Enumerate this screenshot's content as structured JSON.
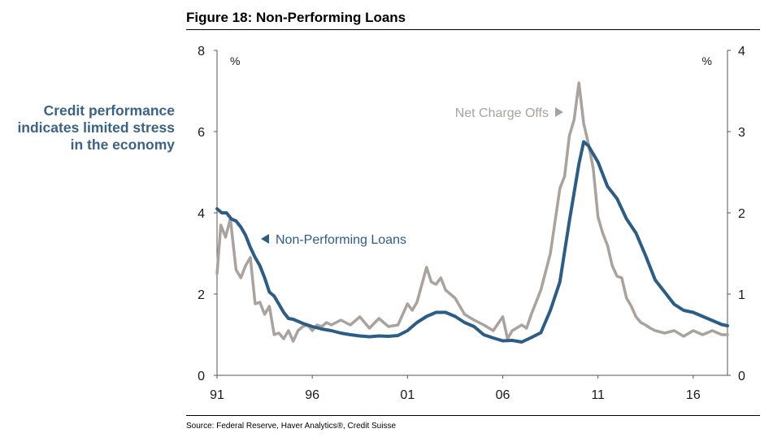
{
  "figure": {
    "title": "Figure 18: Non-Performing Loans",
    "source": "Source: Federal Reserve, Haver Analytics®, Credit Suisse"
  },
  "side_note": {
    "lines": [
      "Credit performance",
      "indicates limited stress",
      "in the economy"
    ]
  },
  "colors": {
    "npl": "#2c5d87",
    "nco": "#aaa29e",
    "side_note": "#3b6287",
    "axis": "#555555"
  },
  "chart_data": {
    "type": "line",
    "title": "Figure 18: Non-Performing Loans",
    "x_range": [
      1991,
      2017.8
    ],
    "x_ticks": [
      1991,
      1996,
      2001,
      2006,
      2011,
      2016
    ],
    "x_tick_labels": [
      "91",
      "96",
      "01",
      "06",
      "11",
      "16"
    ],
    "y_left": {
      "range": [
        0,
        8
      ],
      "ticks": [
        0,
        2,
        4,
        6,
        8
      ],
      "unit": "%"
    },
    "y_right": {
      "range": [
        0,
        4
      ],
      "ticks": [
        0,
        1,
        2,
        3,
        4
      ],
      "unit": "%"
    },
    "grid": false,
    "legend": "inline annotations",
    "annotations": [
      {
        "text": "Non-Performing Loans",
        "series": "Non-Performing Loans",
        "arrow": "left"
      },
      {
        "text": "Net Charge Offs",
        "series": "Net Charge Offs",
        "arrow": "right"
      }
    ],
    "series": [
      {
        "name": "Non-Performing Loans",
        "axis": "left",
        "points": [
          [
            1991.0,
            4.1
          ],
          [
            1991.25,
            4.0
          ],
          [
            1991.5,
            4.0
          ],
          [
            1991.75,
            3.85
          ],
          [
            1992.0,
            3.8
          ],
          [
            1992.25,
            3.65
          ],
          [
            1992.5,
            3.45
          ],
          [
            1992.75,
            3.15
          ],
          [
            1993.0,
            2.9
          ],
          [
            1993.25,
            2.7
          ],
          [
            1993.5,
            2.4
          ],
          [
            1993.75,
            2.05
          ],
          [
            1994.0,
            1.95
          ],
          [
            1994.25,
            1.75
          ],
          [
            1994.5,
            1.55
          ],
          [
            1994.75,
            1.4
          ],
          [
            1995.0,
            1.38
          ],
          [
            1995.25,
            1.33
          ],
          [
            1995.5,
            1.28
          ],
          [
            1995.75,
            1.24
          ],
          [
            1996.0,
            1.2
          ],
          [
            1996.5,
            1.14
          ],
          [
            1997.0,
            1.1
          ],
          [
            1997.5,
            1.04
          ],
          [
            1998.0,
            1.0
          ],
          [
            1998.5,
            0.97
          ],
          [
            1999.0,
            0.95
          ],
          [
            1999.5,
            0.97
          ],
          [
            2000.0,
            0.96
          ],
          [
            2000.5,
            0.98
          ],
          [
            2001.0,
            1.1
          ],
          [
            2001.5,
            1.3
          ],
          [
            2002.0,
            1.45
          ],
          [
            2002.5,
            1.55
          ],
          [
            2003.0,
            1.55
          ],
          [
            2003.5,
            1.45
          ],
          [
            2004.0,
            1.3
          ],
          [
            2004.5,
            1.2
          ],
          [
            2005.0,
            1.0
          ],
          [
            2005.5,
            0.92
          ],
          [
            2006.0,
            0.85
          ],
          [
            2006.5,
            0.86
          ],
          [
            2007.0,
            0.82
          ],
          [
            2007.5,
            0.93
          ],
          [
            2008.0,
            1.05
          ],
          [
            2008.5,
            1.6
          ],
          [
            2009.0,
            2.3
          ],
          [
            2009.5,
            3.8
          ],
          [
            2010.0,
            5.2
          ],
          [
            2010.25,
            5.75
          ],
          [
            2010.5,
            5.65
          ],
          [
            2011.0,
            5.25
          ],
          [
            2011.5,
            4.65
          ],
          [
            2012.0,
            4.35
          ],
          [
            2012.5,
            3.85
          ],
          [
            2013.0,
            3.5
          ],
          [
            2013.5,
            2.95
          ],
          [
            2014.0,
            2.35
          ],
          [
            2014.5,
            2.05
          ],
          [
            2015.0,
            1.75
          ],
          [
            2015.5,
            1.6
          ],
          [
            2016.0,
            1.55
          ],
          [
            2016.5,
            1.45
          ],
          [
            2017.0,
            1.35
          ],
          [
            2017.5,
            1.25
          ],
          [
            2017.8,
            1.22
          ]
        ]
      },
      {
        "name": "Net Charge Offs",
        "axis": "right",
        "points": [
          [
            1991.0,
            1.25
          ],
          [
            1991.2,
            1.85
          ],
          [
            1991.45,
            1.7
          ],
          [
            1991.7,
            1.93
          ],
          [
            1992.0,
            1.3
          ],
          [
            1992.25,
            1.2
          ],
          [
            1992.5,
            1.35
          ],
          [
            1992.75,
            1.45
          ],
          [
            1993.0,
            0.88
          ],
          [
            1993.25,
            0.9
          ],
          [
            1993.5,
            0.75
          ],
          [
            1993.75,
            0.85
          ],
          [
            1994.0,
            0.5
          ],
          [
            1994.25,
            0.52
          ],
          [
            1994.5,
            0.45
          ],
          [
            1994.75,
            0.55
          ],
          [
            1995.0,
            0.42
          ],
          [
            1995.25,
            0.55
          ],
          [
            1995.5,
            0.6
          ],
          [
            1995.75,
            0.62
          ],
          [
            1996.0,
            0.55
          ],
          [
            1996.25,
            0.62
          ],
          [
            1996.5,
            0.6
          ],
          [
            1996.75,
            0.65
          ],
          [
            1997.0,
            0.62
          ],
          [
            1997.5,
            0.68
          ],
          [
            1998.0,
            0.62
          ],
          [
            1998.5,
            0.72
          ],
          [
            1999.0,
            0.58
          ],
          [
            1999.5,
            0.7
          ],
          [
            2000.0,
            0.6
          ],
          [
            2000.5,
            0.62
          ],
          [
            2001.0,
            0.88
          ],
          [
            2001.25,
            0.8
          ],
          [
            2001.5,
            0.9
          ],
          [
            2002.0,
            1.33
          ],
          [
            2002.25,
            1.15
          ],
          [
            2002.5,
            1.12
          ],
          [
            2002.75,
            1.2
          ],
          [
            2003.0,
            1.05
          ],
          [
            2003.5,
            0.95
          ],
          [
            2004.0,
            0.75
          ],
          [
            2004.5,
            0.68
          ],
          [
            2005.0,
            0.62
          ],
          [
            2005.5,
            0.55
          ],
          [
            2006.0,
            0.72
          ],
          [
            2006.25,
            0.45
          ],
          [
            2006.5,
            0.55
          ],
          [
            2007.0,
            0.62
          ],
          [
            2007.25,
            0.58
          ],
          [
            2007.5,
            0.75
          ],
          [
            2008.0,
            1.05
          ],
          [
            2008.5,
            1.5
          ],
          [
            2009.0,
            2.3
          ],
          [
            2009.25,
            2.45
          ],
          [
            2009.5,
            2.95
          ],
          [
            2009.75,
            3.15
          ],
          [
            2010.0,
            3.6
          ],
          [
            2010.25,
            3.1
          ],
          [
            2010.5,
            2.85
          ],
          [
            2010.75,
            2.55
          ],
          [
            2011.0,
            1.95
          ],
          [
            2011.25,
            1.75
          ],
          [
            2011.5,
            1.6
          ],
          [
            2011.75,
            1.35
          ],
          [
            2012.0,
            1.22
          ],
          [
            2012.25,
            1.2
          ],
          [
            2012.5,
            0.95
          ],
          [
            2012.75,
            0.85
          ],
          [
            2013.0,
            0.72
          ],
          [
            2013.25,
            0.65
          ],
          [
            2013.5,
            0.62
          ],
          [
            2013.75,
            0.58
          ],
          [
            2014.0,
            0.55
          ],
          [
            2014.5,
            0.52
          ],
          [
            2015.0,
            0.55
          ],
          [
            2015.5,
            0.48
          ],
          [
            2016.0,
            0.55
          ],
          [
            2016.5,
            0.5
          ],
          [
            2017.0,
            0.55
          ],
          [
            2017.5,
            0.5
          ],
          [
            2017.8,
            0.5
          ]
        ]
      }
    ]
  }
}
